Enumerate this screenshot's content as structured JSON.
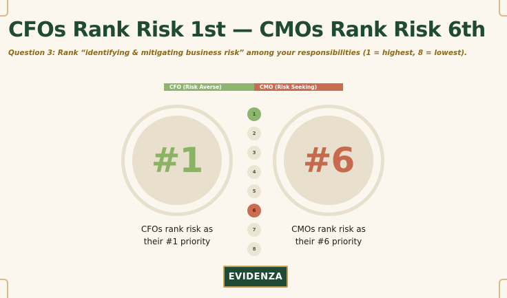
{
  "slide": {
    "title": "CFOs Rank Risk 1st — CMOs Rank Risk 6th",
    "subtitle": "Question 3: Rank “identifying & mitigating business risk” among your responsibilities (1 = highest, 8 = lowest)."
  },
  "legend": {
    "cfo": "CFO (Risk Averse)",
    "cmo": "CMO (Risk Seeking)"
  },
  "cfo": {
    "rank": "#1",
    "caption_line1": "CFOs rank risk as",
    "caption_line2": "their #1 priority",
    "color": "#8eb56f"
  },
  "cmo": {
    "rank": "#6",
    "caption_line1": "CMOs rank risk as",
    "caption_line2": "their #6 priority",
    "color": "#c96c52"
  },
  "scale": {
    "ranks": [
      "1",
      "2",
      "3",
      "4",
      "5",
      "6",
      "7",
      "8"
    ],
    "cfo_rank": 1,
    "cmo_rank": 6
  },
  "brand": {
    "logo_text": "EVIDENZA"
  }
}
